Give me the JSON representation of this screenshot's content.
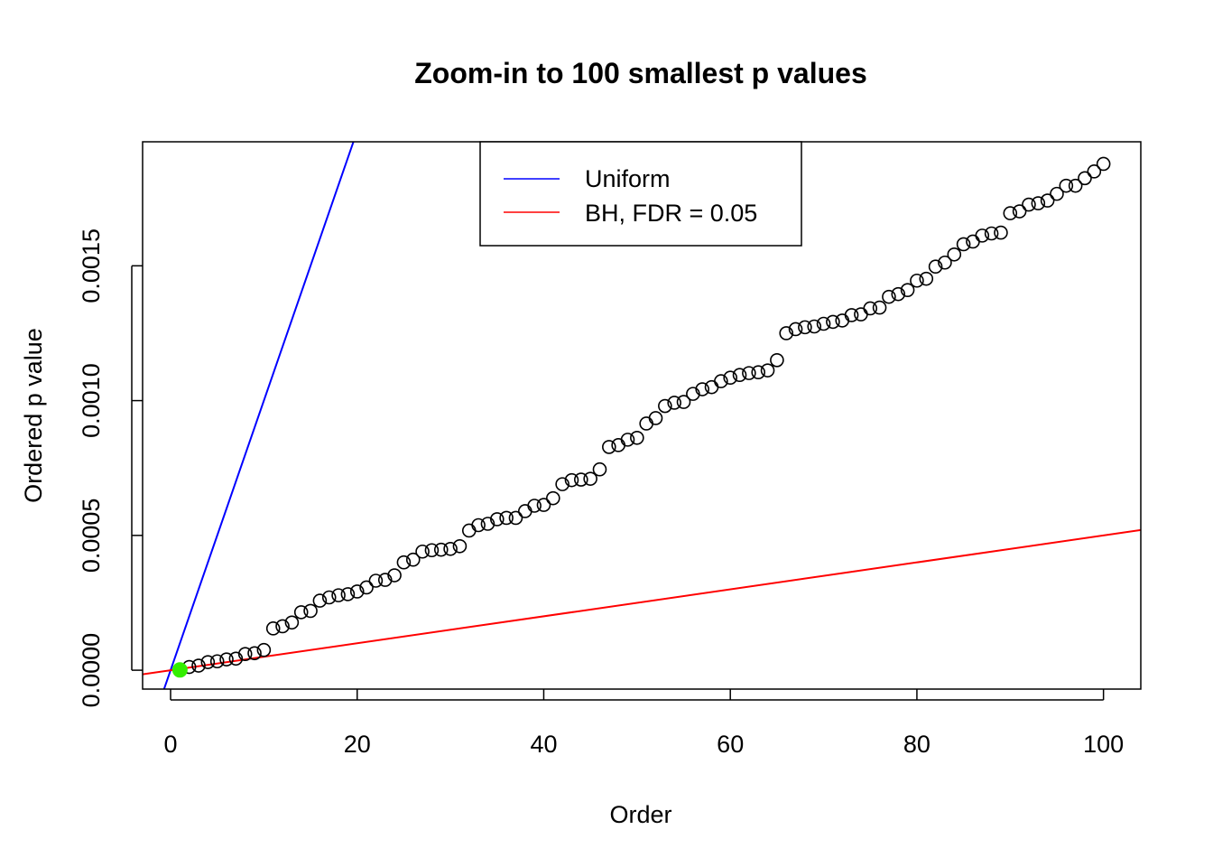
{
  "chart_data": {
    "type": "scatter",
    "title": "Zoom-in to 100 smallest p values",
    "xlabel": "Order",
    "ylabel": "Ordered p value",
    "xlim": [
      -3,
      104
    ],
    "ylim": [
      -7e-05,
      0.00196
    ],
    "x_ticks": [
      0,
      20,
      40,
      60,
      80,
      100
    ],
    "x_tick_labels": [
      "0",
      "20",
      "40",
      "60",
      "80",
      "100"
    ],
    "y_ticks": [
      0,
      0.0005,
      0.001,
      0.0015
    ],
    "y_tick_labels": [
      "0.0000",
      "0.0005",
      "0.0010",
      "0.0015"
    ],
    "grid": false,
    "legend": {
      "placement": "top-center",
      "entries": [
        {
          "label": "Uniform",
          "color": "#0000ff"
        },
        {
          "label": "BH, FDR = 0.05",
          "color": "#ff0000"
        }
      ]
    },
    "lines": [
      {
        "name": "Uniform",
        "color": "#0000ff",
        "slope": 0.0001,
        "intercept": 0
      },
      {
        "name": "BH, FDR = 0.05",
        "color": "#ff0000",
        "slope": 5e-06,
        "intercept": 0
      }
    ],
    "highlight": {
      "x": 1,
      "y": 1e-06,
      "color": "#33ee00"
    },
    "series": [
      {
        "x": [
          1,
          2,
          3,
          4,
          5,
          6,
          7,
          8,
          9,
          10,
          11,
          12,
          13,
          14,
          15,
          16,
          17,
          18,
          19,
          20,
          21,
          22,
          23,
          24,
          25,
          26,
          27,
          28,
          29,
          30,
          31,
          32,
          33,
          34,
          35,
          36,
          37,
          38,
          39,
          40,
          41,
          42,
          43,
          44,
          45,
          46,
          47,
          48,
          49,
          50,
          51,
          52,
          53,
          54,
          55,
          56,
          57,
          58,
          59,
          60,
          61,
          62,
          63,
          64,
          65,
          66,
          67,
          68,
          69,
          70,
          71,
          72,
          73,
          74,
          75,
          76,
          77,
          78,
          79,
          80,
          81,
          82,
          83,
          84,
          85,
          86,
          87,
          88,
          89,
          90,
          91,
          92,
          93,
          94,
          95,
          96,
          97,
          98,
          99,
          100
        ],
        "y": [
          1e-06,
          1.2e-05,
          1.7e-05,
          3e-05,
          3.3e-05,
          4e-05,
          4.3e-05,
          6e-05,
          6.3e-05,
          7.5e-05,
          0.000155,
          0.000163,
          0.000177,
          0.000215,
          0.00022,
          0.000258,
          0.00027,
          0.000278,
          0.000282,
          0.000292,
          0.000307,
          0.000332,
          0.000335,
          0.000352,
          0.0004,
          0.00041,
          0.00044,
          0.000445,
          0.000447,
          0.00045,
          0.00046,
          0.000518,
          0.000538,
          0.000543,
          0.00056,
          0.000565,
          0.000565,
          0.00059,
          0.00061,
          0.000613,
          0.000638,
          0.00069,
          0.000705,
          0.000707,
          0.00071,
          0.000745,
          0.000828,
          0.000835,
          0.000855,
          0.000862,
          0.000915,
          0.000935,
          0.00098,
          0.000992,
          0.000995,
          0.001025,
          0.001042,
          0.00105,
          0.001072,
          0.001085,
          0.001095,
          0.001102,
          0.001105,
          0.001112,
          0.00115,
          0.00125,
          0.001265,
          0.001272,
          0.001275,
          0.001285,
          0.001292,
          0.001297,
          0.001317,
          0.00132,
          0.001342,
          0.001345,
          0.001385,
          0.001395,
          0.00141,
          0.001445,
          0.001452,
          0.001497,
          0.001512,
          0.001542,
          0.00158,
          0.00159,
          0.001612,
          0.00162,
          0.001623,
          0.001695,
          0.001702,
          0.001727,
          0.001732,
          0.001742,
          0.001767,
          0.001797,
          0.001797,
          0.001825,
          0.00185,
          0.001878
        ]
      }
    ]
  }
}
